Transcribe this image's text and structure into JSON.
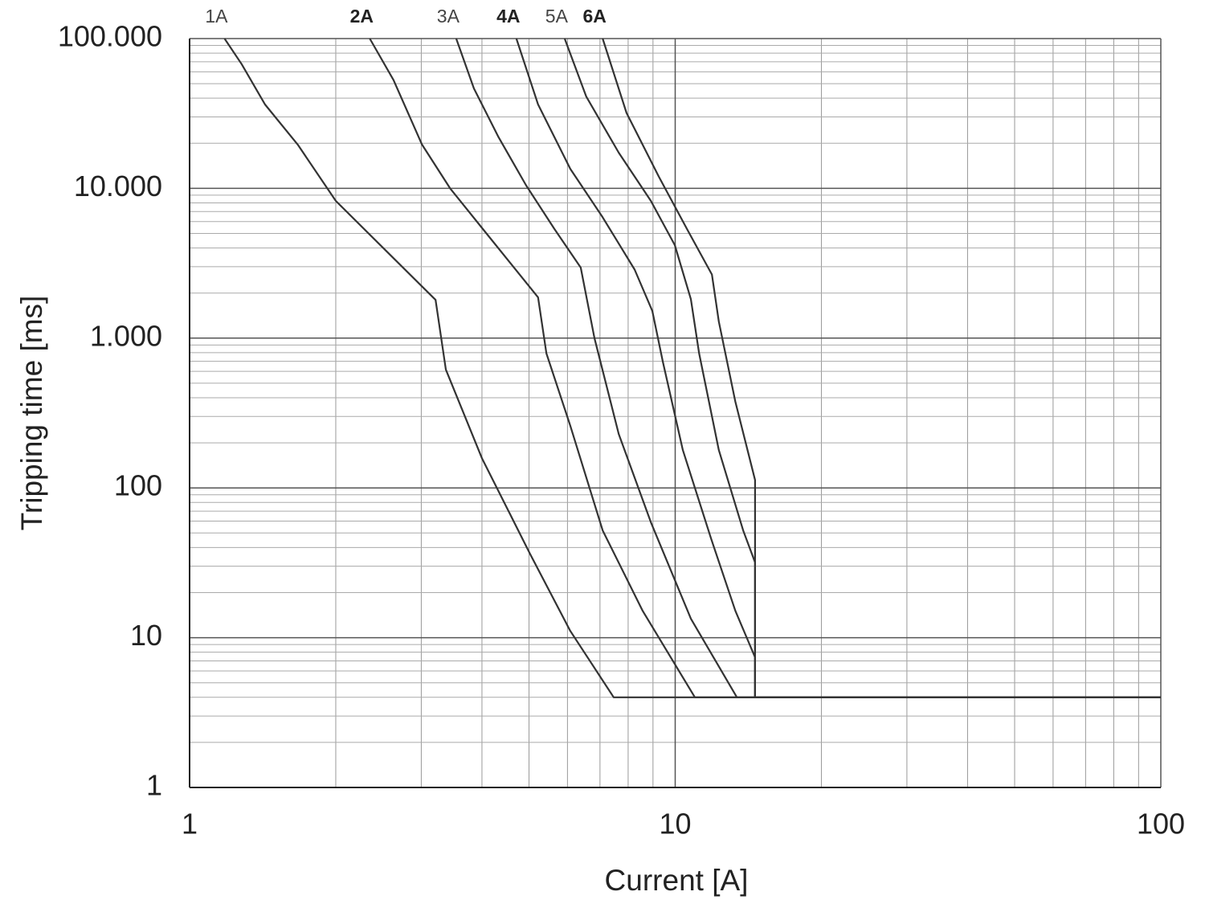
{
  "chart_data": {
    "type": "line",
    "xlabel": "Current [A]",
    "ylabel": "Tripping time [ms]",
    "xscale": "log",
    "yscale": "log",
    "xlim": [
      1,
      100
    ],
    "ylim": [
      1,
      100000
    ],
    "xticks": [
      1,
      10,
      100
    ],
    "yticks": [
      1,
      10,
      100,
      {
        "value": 1000,
        "label": "1.000"
      },
      {
        "value": 10000,
        "label": "10.000"
      },
      {
        "value": 100000,
        "label": "100.000"
      }
    ],
    "grid": true,
    "minor_grid": true,
    "series": [
      {
        "name": "1A",
        "bold": false,
        "color": "#333333",
        "x": [
          1.18,
          1.28,
          1.43,
          1.67,
          2.0,
          3.21,
          3.37,
          4.0,
          5.03,
          6.08,
          7.47,
          100
        ],
        "values": [
          100000,
          67500,
          36300,
          19600,
          8250,
          1800,
          617,
          158,
          36,
          11.1,
          4,
          4
        ]
      },
      {
        "name": "2A",
        "bold": true,
        "color": "#333333",
        "x": [
          2.35,
          2.63,
          3.01,
          3.44,
          4.08,
          5.22,
          5.43,
          6.08,
          7.09,
          8.57,
          10.98,
          100
        ],
        "values": [
          100000,
          52800,
          19600,
          10000,
          5030,
          1870,
          790,
          260,
          52,
          15.1,
          4,
          4
        ]
      },
      {
        "name": "3A",
        "bold": false,
        "color": "#333333",
        "x": [
          3.54,
          3.85,
          4.32,
          4.93,
          5.64,
          6.39,
          6.82,
          7.65,
          8.91,
          10.77,
          13.4,
          100
        ],
        "values": [
          100000,
          46500,
          22200,
          10500,
          5360,
          2960,
          1000,
          229,
          59,
          13.4,
          4,
          4
        ]
      },
      {
        "name": "4A",
        "bold": true,
        "color": "#333333",
        "x": [
          4.71,
          5.22,
          6.08,
          7.09,
          8.25,
          8.97,
          9.43,
          10.37,
          11.85,
          13.3,
          14.6,
          14.6,
          100
        ],
        "values": [
          100000,
          36300,
          13500,
          6410,
          2870,
          1520,
          696,
          179,
          46,
          15.1,
          7.4,
          4,
          4
        ]
      },
      {
        "name": "5A",
        "bold": false,
        "color": "#333333",
        "x": [
          5.92,
          6.56,
          7.65,
          8.91,
          9.98,
          10.77,
          11.2,
          12.3,
          13.8,
          14.6,
          14.6,
          100
        ],
        "values": [
          100000,
          41000,
          17300,
          8250,
          4180,
          1820,
          790,
          179,
          52,
          31.8,
          4,
          4
        ]
      },
      {
        "name": "6A",
        "bold": true,
        "color": "#333333",
        "x": [
          7.09,
          7.94,
          9.25,
          10.57,
          11.9,
          12.3,
          13.3,
          14.6,
          14.6,
          100
        ],
        "values": [
          100000,
          31900,
          12000,
          5360,
          2660,
          1290,
          376,
          113,
          4,
          4
        ]
      }
    ]
  }
}
